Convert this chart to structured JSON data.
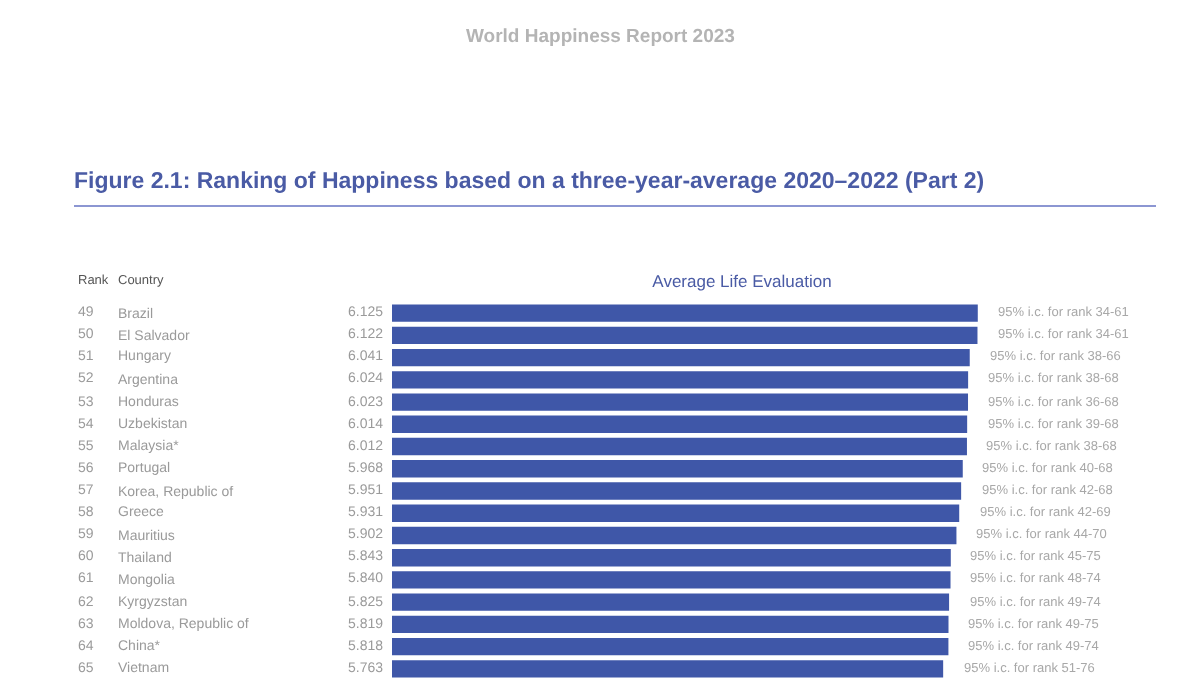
{
  "chart_data": {
    "type": "bar",
    "orientation": "horizontal",
    "title": "Figure 2.1: Ranking of Happiness based on a three-year-average 2020–2022 (Part 2)",
    "xlabel": "Average Life Evaluation",
    "categories": [
      "Brazil",
      "El Salvador",
      "Hungary",
      "Argentina",
      "Honduras",
      "Uzbekistan",
      "Malaysia*",
      "Portugal",
      "Korea, Republic of",
      "Greece",
      "Mauritius",
      "Thailand",
      "Mongolia",
      "Kyrgyzstan",
      "Moldova, Republic of",
      "China*",
      "Vietnam"
    ],
    "values": [
      6.125,
      6.122,
      6.041,
      6.024,
      6.023,
      6.014,
      6.012,
      5.968,
      5.951,
      5.931,
      5.902,
      5.843,
      5.84,
      5.825,
      5.819,
      5.818,
      5.763
    ],
    "value_labels": [
      "6.125",
      "6.122",
      "6.041",
      "6.024",
      "6.023",
      "6.014",
      "6.012",
      "5.968",
      "5.951",
      "5.931",
      "5.902",
      "5.843",
      "5.840",
      "5.825",
      "5.819",
      "5.818",
      "5.763"
    ],
    "color": "#3f57a8",
    "annotations": [
      "World Happiness Report 2023",
      "Rank",
      "Country",
      "49",
      "50",
      "51",
      "52",
      "53",
      "54",
      "55",
      "56",
      "57",
      "58",
      "59",
      "60",
      "61",
      "62",
      "63",
      "64",
      "65",
      "95% i.c. for rank 34-61",
      "95% i.c. for rank 34-61",
      "95% i.c. for rank 38-66",
      "95% i.c. for rank 38-68",
      "95% i.c. for rank 36-68",
      "95% i.c. for rank 39-68",
      "95% i.c. for rank 38-68",
      "95% i.c. for rank 40-68",
      "95% i.c. for rank 42-68",
      "95% i.c. for rank 42-69",
      "95% i.c. for rank 44-70",
      "95% i.c. for rank 45-75",
      "95% i.c. for rank 48-74",
      "95% i.c. for rank 49-74",
      "95% i.c. for rank 49-75",
      "95% i.c. for rank 49-74",
      "95% i.c. for rank 51-76"
    ]
  }
}
